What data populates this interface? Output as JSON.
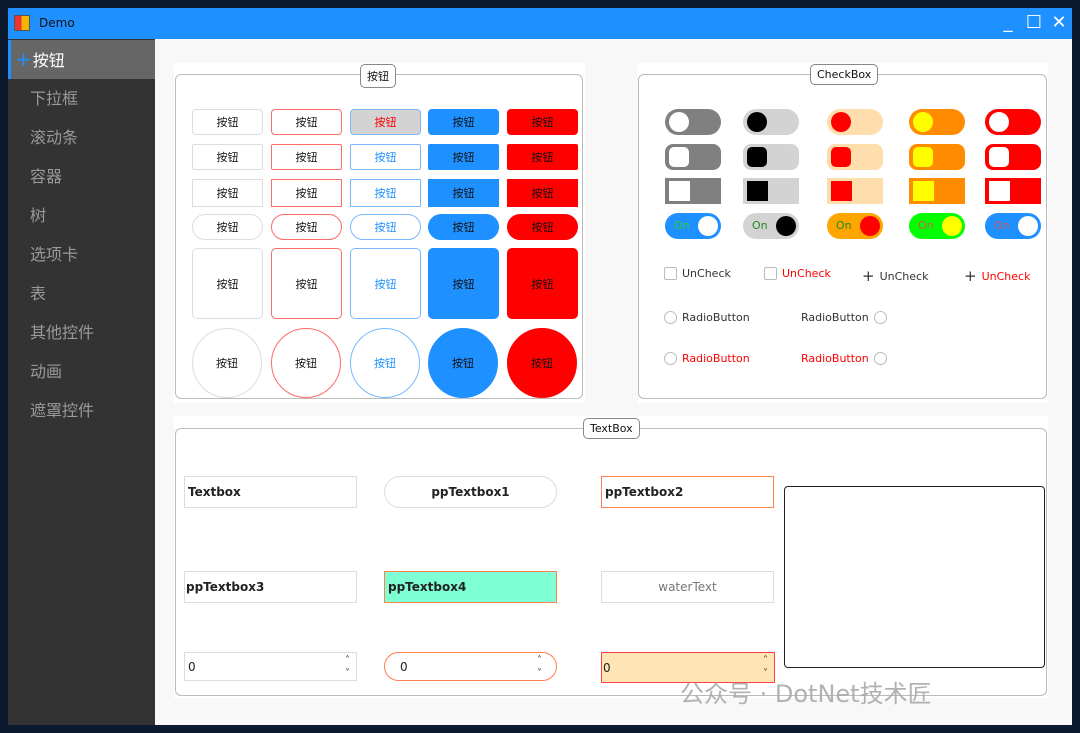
{
  "window": {
    "title": "Demo",
    "minimize": "_",
    "maximize": "☐",
    "close": "✕"
  },
  "sidebar": {
    "items": [
      {
        "label": "按钮",
        "selected": true,
        "icon": "+"
      },
      {
        "label": "下拉框"
      },
      {
        "label": "滚动条"
      },
      {
        "label": "容器"
      },
      {
        "label": "树"
      },
      {
        "label": "选项卡"
      },
      {
        "label": "表"
      },
      {
        "label": "其他控件"
      },
      {
        "label": "动画"
      },
      {
        "label": "遮罩控件"
      }
    ]
  },
  "buttons_group": {
    "title": "按钮",
    "button_label": "按钮",
    "rows": 6,
    "cols": 5
  },
  "checkbox_group": {
    "title": "CheckBox",
    "toggle_on_label": "On",
    "toggle_columns": [
      {
        "track": "#808080",
        "knob": "#ffffff",
        "on_track": "#1e90ff",
        "on_knob": "#ffffff",
        "on_text": "#32cd32"
      },
      {
        "track": "#d3d3d3",
        "knob": "#000000",
        "on_track": "#d3d3d3",
        "on_knob": "#000000",
        "on_text": "#228b22"
      },
      {
        "track": "#ffdead",
        "knob": "#ff0000",
        "on_track": "#ffa500",
        "on_knob": "#ff0000",
        "on_text": "#228b22"
      },
      {
        "track": "#ff8c00",
        "knob": "#ffff00",
        "on_track": "#00ff00",
        "on_knob": "#ffff00",
        "on_text": "#cd5c5c"
      },
      {
        "track": "#ff0000",
        "knob": "#ffffff",
        "on_track": "#1e90ff",
        "on_knob": "#ffffff",
        "on_text": "#cd5c5c"
      }
    ],
    "checks": [
      {
        "label": "UnCheck",
        "style": "box",
        "color": "#333333"
      },
      {
        "label": "UnCheck",
        "style": "box",
        "color": "#ff0000"
      },
      {
        "label": "UnCheck",
        "style": "plus",
        "color": "#333333"
      },
      {
        "label": "UnCheck",
        "style": "plus",
        "color": "#ff0000"
      }
    ],
    "radios": [
      {
        "label": "RadioButton",
        "color": "#333333",
        "side": "left"
      },
      {
        "label": "RadioButton",
        "color": "#333333",
        "side": "right"
      },
      {
        "label": "RadioButton",
        "color": "#ff0000",
        "side": "left"
      },
      {
        "label": "RadioButton",
        "color": "#ff0000",
        "side": "right"
      }
    ]
  },
  "textbox_group": {
    "title": "TextBox",
    "fields": [
      "Textbox",
      "ppTextbox1",
      "ppTextbox2",
      "ppTextbox3",
      "ppTextbox4"
    ],
    "water_placeholder": "waterText",
    "numerics": [
      "0",
      "0",
      "0"
    ],
    "multiline": ""
  },
  "colors": {
    "accent": "#1e90ff",
    "danger": "#ff0000",
    "teal_fill": "#7fffd4",
    "moccasin": "#ffe4b5"
  },
  "watermark": "公众号 · DotNet技术匠"
}
